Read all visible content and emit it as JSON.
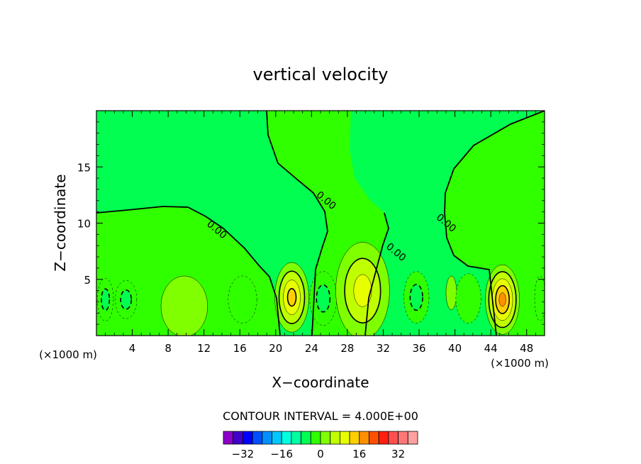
{
  "chart_data": {
    "type": "contour",
    "title": "vertical velocity",
    "xlabel": "X−coordinate",
    "ylabel": "Z−coordinate",
    "x_unit_left": "(×1000 m)",
    "x_unit_right": "(×1000 m)",
    "xlim": [
      0,
      50
    ],
    "ylim": [
      0,
      20
    ],
    "x_ticks": [
      4,
      8,
      12,
      16,
      20,
      24,
      28,
      32,
      36,
      40,
      44,
      48
    ],
    "y_ticks": [
      5,
      10,
      15
    ],
    "contour_interval_text": "CONTOUR INTERVAL = 4.000E+00",
    "contour_interval": 4,
    "zero_labels": [
      {
        "text": "0.00",
        "x": 13.2,
        "z": 9.2
      },
      {
        "text": "0.00",
        "x": 25.4,
        "z": 11.8
      },
      {
        "text": "0.00",
        "x": 33.2,
        "z": 7.2
      },
      {
        "text": "0.00",
        "x": 38.8,
        "z": 9.8
      }
    ],
    "cells": [
      {
        "x": 1.0,
        "z": 3.2,
        "rx": 0.9,
        "rz": 1.9,
        "level": -8
      },
      {
        "x": 3.3,
        "z": 3.2,
        "rx": 1.2,
        "rz": 1.7,
        "level": -8
      },
      {
        "x": 9.8,
        "z": 2.6,
        "rx": 2.6,
        "rz": 2.7,
        "level": 4
      },
      {
        "x": 16.3,
        "z": 3.2,
        "rx": 1.6,
        "rz": 2.1,
        "level": -4
      },
      {
        "x": 21.8,
        "z": 3.4,
        "rx": 1.9,
        "rz": 3.1,
        "level": 16
      },
      {
        "x": 25.3,
        "z": 3.3,
        "rx": 1.5,
        "rz": 2.4,
        "level": -8
      },
      {
        "x": 29.7,
        "z": 4.0,
        "rx": 3.0,
        "rz": 4.3,
        "level": 12
      },
      {
        "x": 35.7,
        "z": 3.4,
        "rx": 1.4,
        "rz": 2.3,
        "level": -8
      },
      {
        "x": 39.6,
        "z": 3.8,
        "rx": 0.6,
        "rz": 1.5,
        "level": 4
      },
      {
        "x": 41.5,
        "z": 3.3,
        "rx": 1.4,
        "rz": 2.2,
        "level": -4
      },
      {
        "x": 45.3,
        "z": 3.2,
        "rx": 1.9,
        "rz": 3.1,
        "level": 20
      },
      {
        "x": 49.5,
        "z": 3.3,
        "rx": 0.6,
        "rz": 2.0,
        "level": -4
      }
    ],
    "colorbar": {
      "min": -40,
      "max": 40,
      "tick_labels": [
        "−32",
        "−16",
        "0",
        "16",
        "32"
      ],
      "tick_values": [
        -32,
        -16,
        0,
        16,
        32
      ],
      "colors": [
        "#8a00c8",
        "#4000c8",
        "#0000ff",
        "#0050ff",
        "#0090ff",
        "#00c8ff",
        "#00ffe0",
        "#00ffa0",
        "#00ff50",
        "#30ff00",
        "#80ff00",
        "#c0ff00",
        "#e8ff00",
        "#ffd000",
        "#ff9000",
        "#ff5000",
        "#ff2010",
        "#ff5050",
        "#ff7878",
        "#ffa0a0"
      ]
    }
  }
}
